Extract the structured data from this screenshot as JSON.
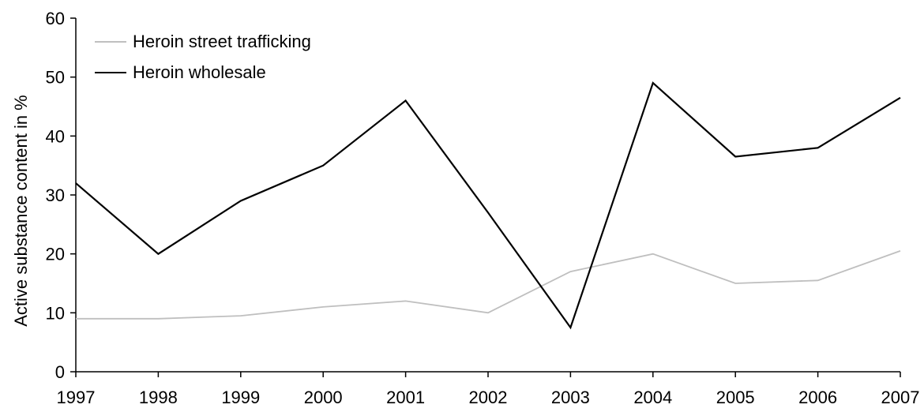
{
  "chart_data": {
    "type": "line",
    "title": "",
    "xlabel": "",
    "ylabel": "Active substance content in %",
    "categories": [
      "1997",
      "1998",
      "1999",
      "2000",
      "2001",
      "2002",
      "2003",
      "2004",
      "2005",
      "2006",
      "2007"
    ],
    "ylim": [
      0,
      60
    ],
    "yticks": [
      "0",
      "10",
      "20",
      "30",
      "40",
      "50",
      "60"
    ],
    "grid": false,
    "legend_position": "top-left",
    "series": [
      {
        "name": "Heroin street trafficking",
        "color": "#bfbfbf",
        "values": [
          9,
          9,
          9.5,
          11,
          12,
          10,
          17,
          20,
          15,
          15.5,
          20.5
        ]
      },
      {
        "name": "Heroin wholesale",
        "color": "#000000",
        "values": [
          32,
          20,
          29,
          35,
          46,
          27,
          7.5,
          49,
          36.5,
          38,
          46.5
        ]
      }
    ]
  }
}
